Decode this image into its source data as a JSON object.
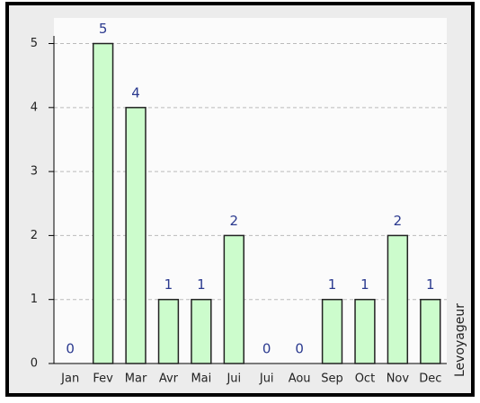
{
  "chart_data": {
    "type": "bar",
    "categories": [
      "Jan",
      "Fev",
      "Mar",
      "Avr",
      "Mai",
      "Jui",
      "Jui",
      "Aou",
      "Sep",
      "Oct",
      "Nov",
      "Dec"
    ],
    "values": [
      0,
      5,
      4,
      1,
      1,
      2,
      0,
      0,
      1,
      1,
      2,
      1
    ],
    "color": "#ccfccc",
    "ylim": [
      0,
      5.4
    ],
    "yticks": [
      0,
      1,
      2,
      3,
      4,
      5
    ],
    "grid": true,
    "watermark": "Levoyageur"
  }
}
